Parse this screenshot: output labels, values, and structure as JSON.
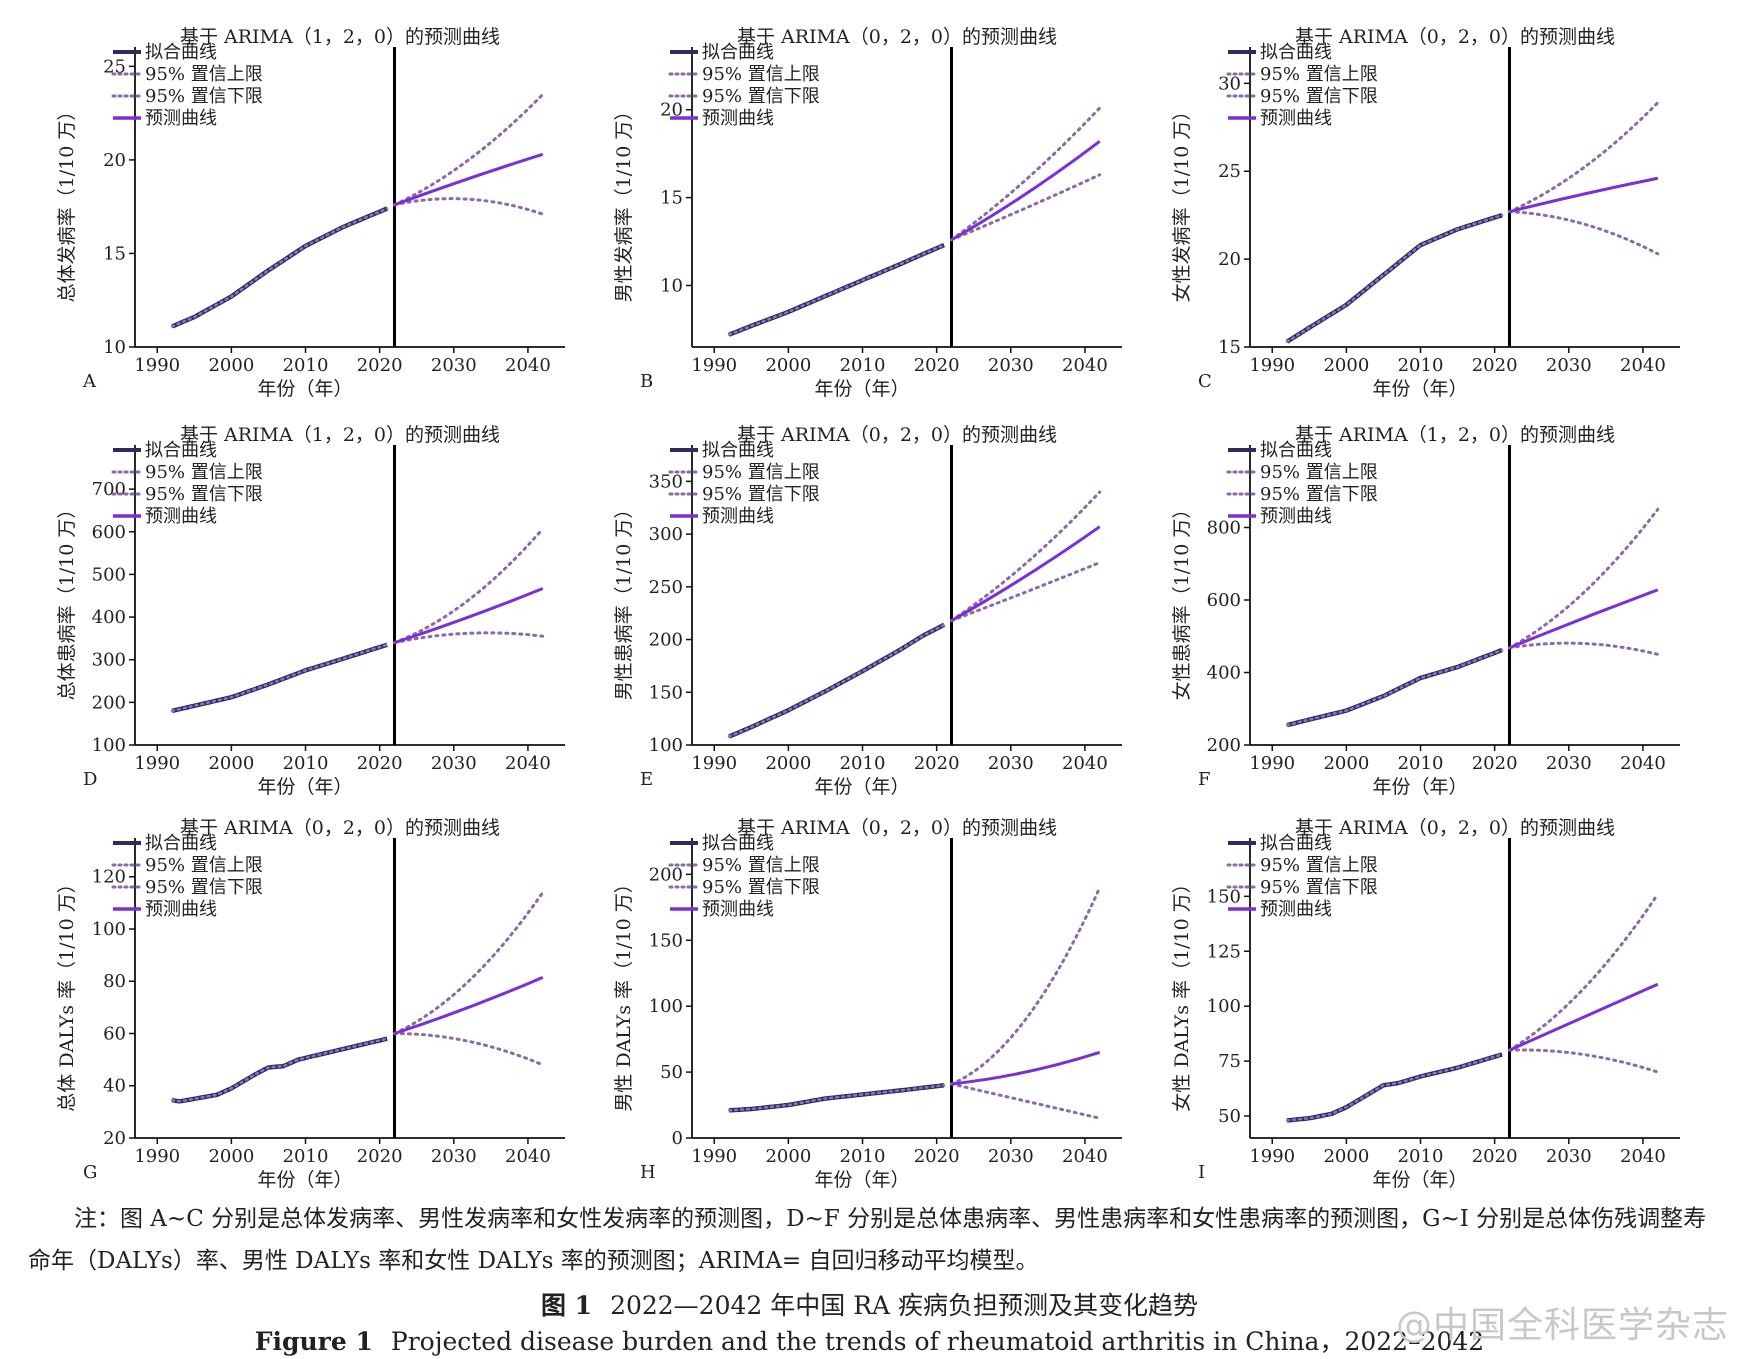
{
  "legend_labels": [
    "拟合曲线",
    "95% 置信上限",
    "95% 置信下限",
    "预测曲线"
  ],
  "xlabel": "年份（年）",
  "colors": {
    "fit": "#2a2d5e",
    "fit_dots": "#8a74c8",
    "ci": "#8a6aa8",
    "forecast": "#7b2fd6",
    "axis": "#111111"
  },
  "chart_data": [
    {
      "panel": "A",
      "type": "line",
      "title": "基于 ARIMA（1，2，0）的预测曲线",
      "ylabel": "总体发病率（1/10 万）",
      "xlim": [
        1987,
        2045
      ],
      "ylim": [
        10,
        25.5
      ],
      "yticks": [
        10,
        15,
        20,
        25
      ],
      "xticks": [
        1990,
        2000,
        2010,
        2020,
        2030,
        2040
      ],
      "divider_x": 2022,
      "fit_x": [
        1992,
        1995,
        2000,
        2005,
        2010,
        2015,
        2021
      ],
      "fit_y": [
        11.1,
        11.6,
        12.7,
        14.1,
        15.4,
        16.4,
        17.4
      ],
      "fc_x": [
        2022,
        2032,
        2042
      ],
      "forecast": [
        17.6,
        19.0,
        20.3
      ],
      "upper": [
        17.6,
        20.0,
        23.5
      ],
      "lower": [
        17.6,
        17.9,
        17.1
      ]
    },
    {
      "panel": "B",
      "type": "line",
      "title": "基于 ARIMA（0，2，0）的预测曲线",
      "ylabel": "男性发病率（1/10 万）",
      "xlim": [
        1987,
        2045
      ],
      "ylim": [
        6.5,
        23
      ],
      "yticks": [
        10,
        15,
        20
      ],
      "xticks": [
        1990,
        2000,
        2010,
        2020,
        2030,
        2040
      ],
      "divider_x": 2022,
      "fit_x": [
        1992,
        1995,
        2000,
        2005,
        2010,
        2015,
        2021
      ],
      "fit_y": [
        7.2,
        7.7,
        8.5,
        9.4,
        10.3,
        11.2,
        12.3
      ],
      "fc_x": [
        2022,
        2032,
        2042
      ],
      "forecast": [
        12.6,
        15.2,
        18.2
      ],
      "upper": [
        12.6,
        16.0,
        20.1
      ],
      "lower": [
        12.6,
        14.4,
        16.3
      ]
    },
    {
      "panel": "C",
      "type": "line",
      "title": "基于 ARIMA（0，2，0）的预测曲线",
      "ylabel": "女性发病率（1/10 万）",
      "xlim": [
        1987,
        2045
      ],
      "ylim": [
        15,
        31.5
      ],
      "yticks": [
        15,
        20,
        25,
        30
      ],
      "xticks": [
        1990,
        2000,
        2010,
        2020,
        2030,
        2040
      ],
      "divider_x": 2022,
      "fit_x": [
        1992,
        1995,
        2000,
        2005,
        2010,
        2015,
        2021
      ],
      "fit_y": [
        15.3,
        16.1,
        17.4,
        19.1,
        20.8,
        21.7,
        22.5
      ],
      "fc_x": [
        2022,
        2032,
        2042
      ],
      "forecast": [
        22.7,
        23.7,
        24.6
      ],
      "upper": [
        22.7,
        25.2,
        28.9
      ],
      "lower": [
        22.7,
        22.0,
        20.3
      ]
    },
    {
      "panel": "D",
      "type": "line",
      "title": "基于 ARIMA（1，2，0）的预测曲线",
      "ylabel": "总体患病率（1/10 万）",
      "xlim": [
        1987,
        2045
      ],
      "ylim": [
        100,
        780
      ],
      "yticks": [
        100,
        200,
        300,
        400,
        500,
        600,
        700
      ],
      "xticks": [
        1990,
        2000,
        2010,
        2020,
        2030,
        2040
      ],
      "divider_x": 2022,
      "fit_x": [
        1992,
        1995,
        2000,
        2005,
        2010,
        2015,
        2021
      ],
      "fit_y": [
        180,
        192,
        212,
        242,
        275,
        302,
        335
      ],
      "fc_x": [
        2022,
        2032,
        2042
      ],
      "forecast": [
        340,
        400,
        467
      ],
      "upper": [
        340,
        440,
        607
      ],
      "lower": [
        340,
        362,
        355
      ]
    },
    {
      "panel": "E",
      "type": "line",
      "title": "基于 ARIMA（0，2，0）的预测曲线",
      "ylabel": "男性患病率（1/10 万）",
      "xlim": [
        1987,
        2045
      ],
      "ylim": [
        100,
        375
      ],
      "yticks": [
        100,
        150,
        200,
        250,
        300,
        350
      ],
      "xticks": [
        1990,
        2000,
        2010,
        2020,
        2030,
        2040
      ],
      "divider_x": 2022,
      "fit_x": [
        1992,
        1995,
        2000,
        2005,
        2010,
        2015,
        2018,
        2021
      ],
      "fit_y": [
        108,
        117,
        133,
        151,
        170,
        190,
        203,
        214
      ],
      "fc_x": [
        2022,
        2032,
        2042
      ],
      "forecast": [
        218,
        260,
        307
      ],
      "upper": [
        218,
        272,
        340
      ],
      "lower": [
        218,
        245,
        273
      ]
    },
    {
      "panel": "F",
      "type": "line",
      "title": "基于 ARIMA（1，2，0）的预测曲线",
      "ylabel": "女性患病率（1/10 万）",
      "xlim": [
        1987,
        2045
      ],
      "ylim": [
        200,
        1000
      ],
      "yticks": [
        200,
        400,
        600,
        800
      ],
      "xticks": [
        1990,
        2000,
        2010,
        2020,
        2030,
        2040
      ],
      "divider_x": 2022,
      "fit_x": [
        1992,
        1995,
        2000,
        2005,
        2010,
        2015,
        2021
      ],
      "fit_y": [
        255,
        270,
        295,
        335,
        385,
        415,
        462
      ],
      "fc_x": [
        2022,
        2032,
        2042
      ],
      "forecast": [
        468,
        550,
        628
      ],
      "upper": [
        468,
        620,
        850
      ],
      "lower": [
        468,
        480,
        450
      ]
    },
    {
      "panel": "G",
      "type": "line",
      "title": "基于 ARIMA（0，2，0）的预测曲线",
      "ylabel": "总体 DALYs 率（1/10 万）",
      "xlim": [
        1987,
        2045
      ],
      "ylim": [
        20,
        131
      ],
      "yticks": [
        20,
        40,
        60,
        80,
        100,
        120
      ],
      "xticks": [
        1990,
        2000,
        2010,
        2020,
        2030,
        2040
      ],
      "divider_x": 2022,
      "fit_x": [
        1992,
        1993,
        1995,
        1998,
        2000,
        2003,
        2005,
        2007,
        2009,
        2012,
        2015,
        2018,
        2021
      ],
      "fit_y": [
        34.5,
        34,
        35,
        36.5,
        39,
        44,
        47,
        47.5,
        50,
        52,
        54,
        56,
        58
      ],
      "fc_x": [
        2022,
        2032,
        2042
      ],
      "forecast": [
        60,
        70,
        81.5
      ],
      "upper": [
        60,
        80,
        114
      ],
      "lower": [
        60,
        57,
        48
      ]
    },
    {
      "panel": "H",
      "type": "line",
      "title": "基于 ARIMA（0，2，0）的预测曲线",
      "ylabel": "男性 DALYs 率（1/10 万）",
      "xlim": [
        1987,
        2045
      ],
      "ylim": [
        0,
        220
      ],
      "yticks": [
        0,
        50,
        100,
        150,
        200
      ],
      "xticks": [
        1990,
        2000,
        2010,
        2020,
        2030,
        2040
      ],
      "divider_x": 2022,
      "fit_x": [
        1992,
        1995,
        2000,
        2005,
        2010,
        2015,
        2021
      ],
      "fit_y": [
        21,
        22,
        25,
        30,
        33,
        36,
        40
      ],
      "fc_x": [
        2022,
        2032,
        2042
      ],
      "forecast": [
        41,
        50,
        65
      ],
      "upper": [
        41,
        90,
        190
      ],
      "lower": [
        41,
        28,
        15
      ]
    },
    {
      "panel": "I",
      "type": "line",
      "title": "基于 ARIMA（0，2，0）的预测曲线",
      "ylabel": "女性 DALYs 率（1/10 万）",
      "xlim": [
        1987,
        2045
      ],
      "ylim": [
        40,
        172
      ],
      "yticks": [
        50,
        75,
        100,
        125,
        150
      ],
      "xticks": [
        1990,
        2000,
        2010,
        2020,
        2030,
        2040
      ],
      "divider_x": 2022,
      "fit_x": [
        1992,
        1995,
        1998,
        2000,
        2003,
        2005,
        2007,
        2010,
        2015,
        2021
      ],
      "fit_y": [
        48,
        49,
        51,
        54,
        60,
        64,
        65,
        68,
        72,
        78
      ],
      "fc_x": [
        2022,
        2032,
        2042
      ],
      "forecast": [
        80,
        95,
        110
      ],
      "upper": [
        80,
        108,
        151
      ],
      "lower": [
        80,
        78,
        70
      ]
    }
  ],
  "note": "注：图 A~C 分别是总体发病率、男性发病率和女性发病率的预测图，D~F 分别是总体患病率、男性患病率和女性患病率的预测图，G~I 分别是总体伤残调整寿命年（DALYs）率、男性 DALYs 率和女性 DALYs 率的预测图；ARIMA= 自回归移动平均模型。",
  "caption_cn_label": "图 1",
  "caption_cn_text": "2022—2042 年中国 RA 疾病负担预测及其变化趋势",
  "caption_en_label": "Figure 1",
  "caption_en_text": "Projected disease burden and the trends of rheumatoid arthritis in China，2022–2042",
  "watermark": "@中国全科医学杂志"
}
